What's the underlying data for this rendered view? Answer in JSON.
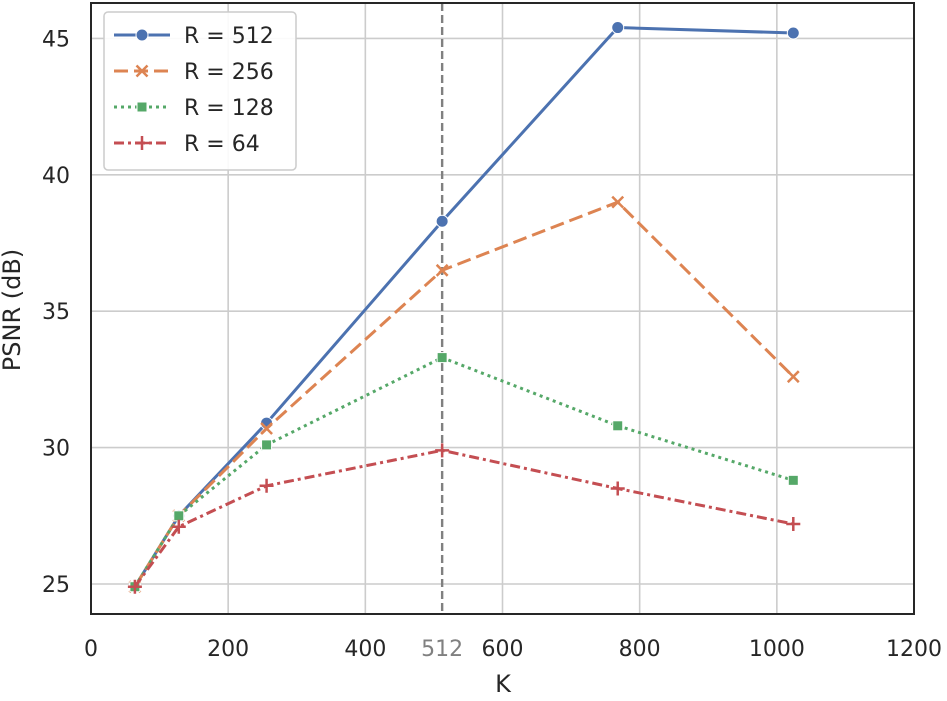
{
  "chart_data": {
    "type": "line",
    "xlabel": "K",
    "ylabel": "PSNR (dB)",
    "xlim": [
      0,
      1200
    ],
    "ylim": [
      23.9,
      46.3
    ],
    "xticks": [
      0,
      200,
      400,
      600,
      800,
      1000,
      1200
    ],
    "yticks": [
      25,
      30,
      35,
      40,
      45
    ],
    "grid": true,
    "legend_position": "top-left",
    "vline": {
      "x": 512,
      "label": "512",
      "color": "#808080"
    },
    "series": [
      {
        "name": "R = 512",
        "color": "#4c72b0",
        "dash": "solid",
        "marker": "circle",
        "x": [
          64,
          128,
          256,
          512,
          768,
          1024
        ],
        "y": [
          24.9,
          27.5,
          30.9,
          38.3,
          45.4,
          45.2
        ]
      },
      {
        "name": "R = 256",
        "color": "#dd8452",
        "dash": "dashed",
        "marker": "x",
        "x": [
          64,
          128,
          256,
          512,
          768,
          1024
        ],
        "y": [
          24.9,
          27.5,
          30.7,
          36.5,
          39.0,
          32.6
        ]
      },
      {
        "name": "R = 128",
        "color": "#55a868",
        "dash": "dotted",
        "marker": "square",
        "x": [
          64,
          128,
          256,
          512,
          768,
          1024
        ],
        "y": [
          24.9,
          27.5,
          30.1,
          33.3,
          30.8,
          28.8
        ]
      },
      {
        "name": "R = 64",
        "color": "#c44e52",
        "dash": "dashdot",
        "marker": "plus",
        "x": [
          64,
          128,
          256,
          512,
          768,
          1024
        ],
        "y": [
          24.9,
          27.1,
          28.6,
          29.9,
          28.5,
          27.2
        ]
      }
    ]
  }
}
